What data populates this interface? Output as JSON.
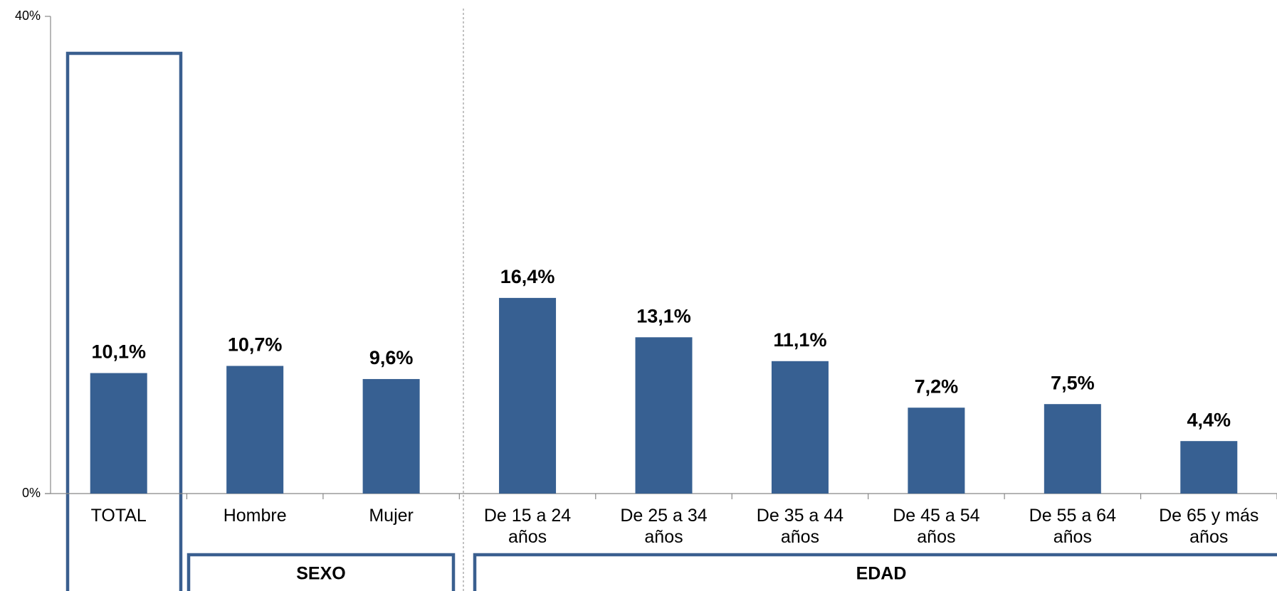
{
  "chart_data": {
    "type": "bar",
    "categories": [
      "TOTAL",
      "Hombre",
      "Mujer",
      "De 15 a 24 años",
      "De 25 a 34 años",
      "De 35 a 44 años",
      "De 45 a 54 años",
      "De 55 a 64 años",
      "De 65 y más años"
    ],
    "values": [
      10.1,
      10.7,
      9.6,
      16.4,
      13.1,
      11.1,
      7.2,
      7.5,
      4.4
    ],
    "value_labels": [
      "10,1%",
      "10,7%",
      "9,6%",
      "16,4%",
      "13,1%",
      "11,1%",
      "7,2%",
      "7,5%",
      "4,4%"
    ],
    "color": "#376092",
    "ylim": [
      0,
      40
    ],
    "yticks": [
      {
        "value": 0,
        "label": "0%"
      },
      {
        "value": 40,
        "label": "40%"
      }
    ],
    "groups": [
      {
        "label": "SEXO"
      },
      {
        "label": "EDAD"
      }
    ]
  }
}
